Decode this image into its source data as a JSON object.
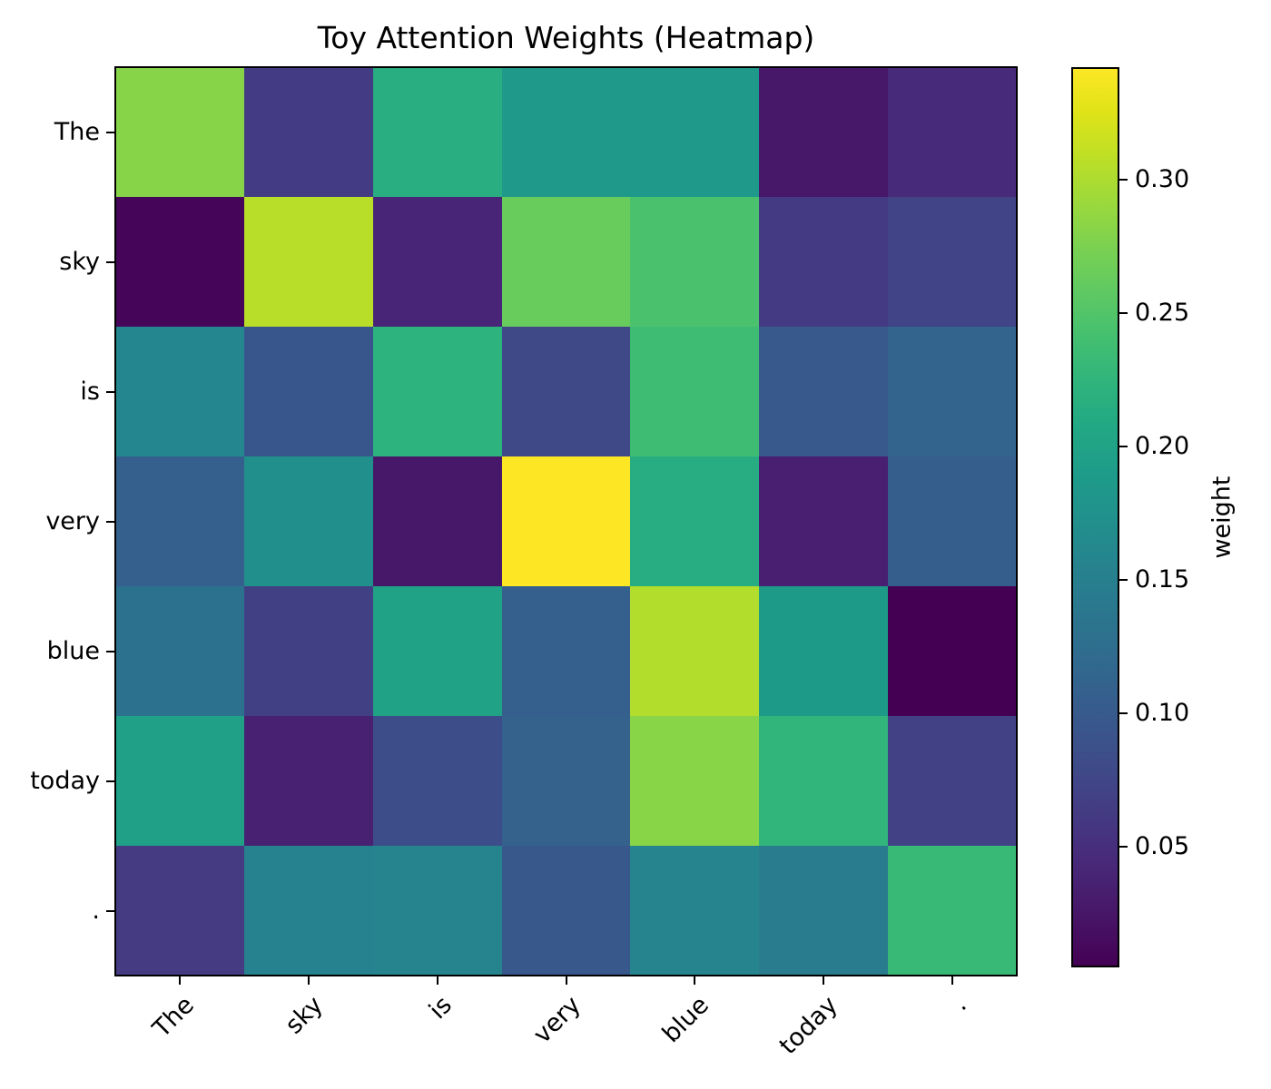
{
  "figure": {
    "title": "Toy Attention Weights (Heatmap)"
  },
  "chart_data": {
    "type": "heatmap",
    "title": "Toy Attention Weights (Heatmap)",
    "x_tick_labels": [
      "The",
      "sky",
      "is",
      "very",
      "blue",
      "today",
      "."
    ],
    "y_tick_labels": [
      "The",
      "sky",
      "is",
      "very",
      "blue",
      "today",
      "."
    ],
    "x_tick_rotation_deg": 45,
    "matrix": [
      [
        0.281,
        0.064,
        0.215,
        0.187,
        0.186,
        0.026,
        0.046
      ],
      [
        0.01,
        0.306,
        0.04,
        0.264,
        0.245,
        0.062,
        0.073
      ],
      [
        0.159,
        0.095,
        0.222,
        0.078,
        0.236,
        0.098,
        0.112
      ],
      [
        0.107,
        0.172,
        0.026,
        0.342,
        0.214,
        0.034,
        0.105
      ],
      [
        0.132,
        0.068,
        0.199,
        0.107,
        0.303,
        0.188,
        0.005
      ],
      [
        0.196,
        0.036,
        0.083,
        0.11,
        0.282,
        0.226,
        0.069
      ],
      [
        0.063,
        0.154,
        0.157,
        0.097,
        0.157,
        0.145,
        0.232
      ]
    ],
    "vmin": 0.005,
    "vmax": 0.342,
    "colorbar": {
      "label": "weight",
      "ticks": [
        0.05,
        0.1,
        0.15,
        0.2,
        0.25,
        0.3
      ],
      "position": "right"
    },
    "colormap": {
      "name": "viridis",
      "stops": [
        [
          0.0,
          "#440154"
        ],
        [
          0.05,
          "#471365"
        ],
        [
          0.1,
          "#482475"
        ],
        [
          0.15,
          "#463480"
        ],
        [
          0.2,
          "#414487"
        ],
        [
          0.25,
          "#3b528b"
        ],
        [
          0.3,
          "#355f8d"
        ],
        [
          0.35,
          "#2f6c8e"
        ],
        [
          0.4,
          "#2a788e"
        ],
        [
          0.45,
          "#25848e"
        ],
        [
          0.5,
          "#21918c"
        ],
        [
          0.55,
          "#1e9c89"
        ],
        [
          0.6,
          "#22a884"
        ],
        [
          0.65,
          "#2fb47c"
        ],
        [
          0.7,
          "#44bf70"
        ],
        [
          0.75,
          "#5ec962"
        ],
        [
          0.8,
          "#7ad151"
        ],
        [
          0.85,
          "#9bd93c"
        ],
        [
          0.9,
          "#bddf26"
        ],
        [
          0.95,
          "#dfe318"
        ],
        [
          1.0,
          "#fde725"
        ]
      ]
    },
    "grid": false,
    "legend": null
  }
}
